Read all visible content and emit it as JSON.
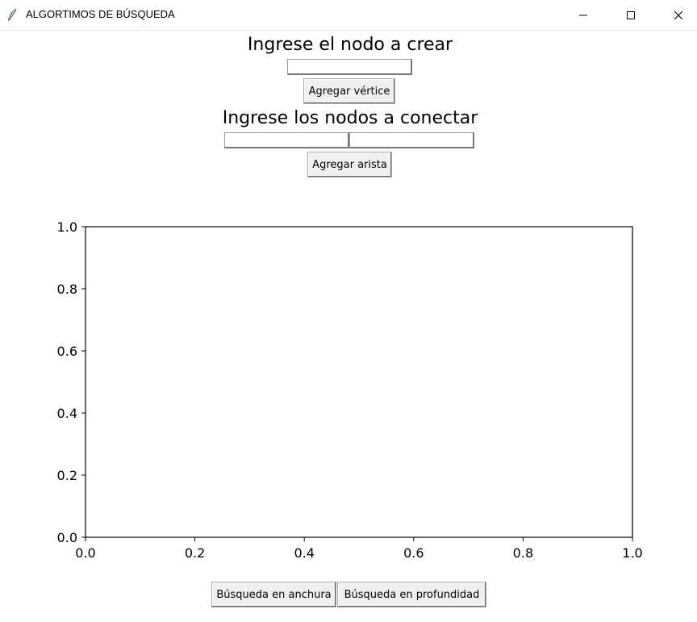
{
  "window": {
    "title": "ALGORTIMOS DE BÚSQUEDA",
    "app_icon": "feather-icon",
    "controls": [
      "minimize-icon",
      "maximize-icon",
      "close-icon"
    ]
  },
  "create_node": {
    "heading": "Ingrese el nodo a crear",
    "input_value": "",
    "button_label": "Agregar vértice"
  },
  "connect_nodes": {
    "heading": "Ingrese los nodos a conectar",
    "input1_value": "",
    "input2_value": "",
    "button_label": "Agregar arista"
  },
  "chart_data": {
    "type": "line",
    "series": [],
    "xlim": [
      0.0,
      1.0
    ],
    "ylim": [
      0.0,
      1.0
    ],
    "xticks": [
      "0.0",
      "0.2",
      "0.4",
      "0.6",
      "0.8",
      "1.0"
    ],
    "yticks": [
      "0.0",
      "0.2",
      "0.4",
      "0.6",
      "0.8",
      "1.0"
    ],
    "grid": false
  },
  "search_buttons": {
    "bfs_label": "Búsqueda en anchura",
    "dfs_label": "Búsqueda en profundidad"
  }
}
